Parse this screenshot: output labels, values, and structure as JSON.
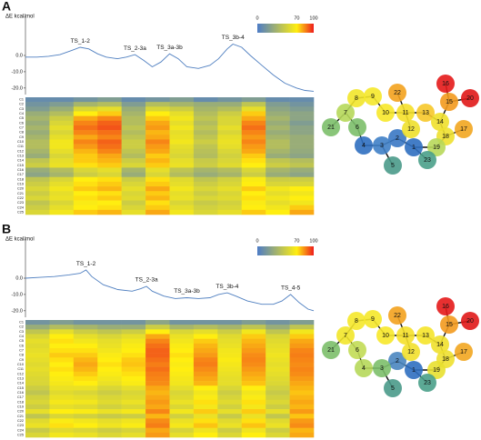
{
  "chart_data": [
    {
      "type": "line",
      "panel": "A",
      "ylabel": "ΔE kcal/mol",
      "color": "#4f7fc0",
      "x": [
        0,
        4,
        8,
        12,
        16,
        19,
        22,
        25,
        28,
        32,
        35,
        38,
        41,
        44,
        47,
        50,
        53,
        56,
        60,
        64,
        67,
        70,
        72,
        75,
        78,
        82,
        86,
        90,
        94,
        97,
        100
      ],
      "values": [
        -1,
        -1,
        -0.5,
        0.5,
        3,
        5,
        4,
        1,
        -1,
        -2,
        -1,
        0.5,
        -3,
        -7,
        -4,
        1,
        -2,
        -7,
        -8,
        -6,
        -2,
        4,
        7,
        5,
        0,
        -6,
        -12,
        -17,
        -20,
        -21.5,
        -22
      ],
      "xlim": [
        0,
        100
      ],
      "ylim": [
        -24,
        24
      ],
      "yticks": [
        {
          "value": 0,
          "label": "0.0"
        },
        {
          "value": -10,
          "label": "-10.0"
        },
        {
          "value": -20,
          "label": "-20.0"
        }
      ],
      "annotations": [
        {
          "text": "TS_1-2",
          "x": 19,
          "y": 5
        },
        {
          "text": "TS_2-3a",
          "x": 38,
          "y": 0.5
        },
        {
          "text": "TS_3a-3b",
          "x": 50,
          "y": 1
        },
        {
          "text": "TS_3b-4",
          "x": 72,
          "y": 7
        }
      ],
      "heatmap": {
        "rows": [
          "C1",
          "C2",
          "C3",
          "C4",
          "C5",
          "C6",
          "C7",
          "C8",
          "C9",
          "C10",
          "C11",
          "C12",
          "C13",
          "C14",
          "C15",
          "C16",
          "C17",
          "C18",
          "C19",
          "C20",
          "C21",
          "C22",
          "C23",
          "C24",
          "C25"
        ],
        "values": [
          [
            10,
            10,
            15,
            20,
            10,
            15,
            20,
            10,
            15,
            20,
            10,
            10
          ],
          [
            15,
            20,
            35,
            40,
            20,
            40,
            35,
            30,
            30,
            45,
            20,
            15
          ],
          [
            20,
            30,
            55,
            60,
            30,
            55,
            50,
            35,
            40,
            60,
            25,
            20
          ],
          [
            30,
            40,
            70,
            75,
            35,
            70,
            60,
            40,
            50,
            75,
            30,
            25
          ],
          [
            35,
            50,
            80,
            85,
            40,
            75,
            65,
            45,
            55,
            80,
            35,
            25
          ],
          [
            30,
            55,
            85,
            90,
            40,
            80,
            60,
            40,
            55,
            85,
            30,
            20
          ],
          [
            35,
            60,
            88,
            92,
            45,
            82,
            65,
            45,
            60,
            88,
            35,
            25
          ],
          [
            30,
            55,
            85,
            88,
            40,
            78,
            60,
            40,
            55,
            85,
            30,
            25
          ],
          [
            35,
            60,
            80,
            85,
            45,
            80,
            62,
            45,
            60,
            82,
            35,
            30
          ],
          [
            40,
            65,
            85,
            90,
            50,
            85,
            65,
            50,
            62,
            85,
            40,
            30
          ],
          [
            40,
            65,
            82,
            88,
            50,
            82,
            60,
            45,
            60,
            82,
            40,
            30
          ],
          [
            35,
            60,
            78,
            85,
            45,
            80,
            58,
            42,
            55,
            80,
            35,
            28
          ],
          [
            30,
            55,
            75,
            80,
            40,
            75,
            55,
            40,
            52,
            75,
            30,
            25
          ],
          [
            45,
            60,
            75,
            78,
            50,
            78,
            60,
            48,
            55,
            72,
            45,
            40
          ],
          [
            50,
            62,
            72,
            75,
            55,
            75,
            62,
            50,
            58,
            70,
            50,
            45
          ],
          [
            30,
            40,
            55,
            60,
            35,
            60,
            45,
            35,
            40,
            55,
            35,
            30
          ],
          [
            25,
            35,
            50,
            55,
            30,
            55,
            40,
            30,
            35,
            50,
            30,
            25
          ],
          [
            45,
            55,
            70,
            72,
            50,
            72,
            58,
            45,
            52,
            68,
            50,
            50
          ],
          [
            50,
            60,
            72,
            75,
            55,
            75,
            60,
            50,
            55,
            70,
            55,
            55
          ],
          [
            55,
            65,
            75,
            78,
            60,
            80,
            65,
            55,
            60,
            75,
            65,
            70
          ],
          [
            50,
            60,
            70,
            72,
            55,
            75,
            60,
            50,
            55,
            70,
            60,
            65
          ],
          [
            55,
            62,
            72,
            75,
            58,
            78,
            62,
            55,
            58,
            72,
            65,
            70
          ],
          [
            45,
            55,
            68,
            70,
            50,
            72,
            55,
            48,
            52,
            68,
            60,
            65
          ],
          [
            50,
            60,
            70,
            72,
            55,
            75,
            60,
            52,
            55,
            70,
            65,
            75
          ],
          [
            55,
            65,
            75,
            78,
            60,
            80,
            65,
            55,
            60,
            75,
            70,
            80
          ]
        ],
        "colorbar": {
          "ticks": [
            0,
            70,
            100
          ],
          "colors": [
            "#4d7cc6",
            "#ffee10",
            "#ee1c1c"
          ]
        }
      },
      "molecule": {
        "nodes": [
          {
            "label": "1",
            "color": "#2f6fc0"
          },
          {
            "label": "2",
            "color": "#3a78c4"
          },
          {
            "label": "3",
            "color": "#3f7fc6"
          },
          {
            "label": "4",
            "color": "#2f6fc0"
          },
          {
            "label": "5",
            "color": "#4a9a8a"
          },
          {
            "label": "6",
            "color": "#7cbf6a"
          },
          {
            "label": "7",
            "color": "#b6d85a"
          },
          {
            "label": "8",
            "color": "#f2e52a"
          },
          {
            "label": "9",
            "color": "#f5e82a"
          },
          {
            "label": "10",
            "color": "#f7e82a"
          },
          {
            "label": "11",
            "color": "#f5e02a"
          },
          {
            "label": "12",
            "color": "#eee02c"
          },
          {
            "label": "13",
            "color": "#f6c82a"
          },
          {
            "label": "14",
            "color": "#f0e02c"
          },
          {
            "label": "15",
            "color": "#f39a1e"
          },
          {
            "label": "16",
            "color": "#e41a1a"
          },
          {
            "label": "17",
            "color": "#f2a620"
          },
          {
            "label": "18",
            "color": "#eee030"
          },
          {
            "label": "19",
            "color": "#b8d85a"
          },
          {
            "label": "20",
            "color": "#e01818"
          },
          {
            "label": "21",
            "color": "#7cbf6a"
          },
          {
            "label": "22",
            "color": "#f3a21e"
          },
          {
            "label": "23",
            "color": "#4aa08a"
          }
        ]
      }
    },
    {
      "type": "line",
      "panel": "B",
      "ylabel": "ΔE kcal/mol",
      "color": "#4f7fc0",
      "x": [
        0,
        5,
        10,
        15,
        19,
        21,
        23,
        27,
        32,
        37,
        40,
        42,
        44,
        48,
        52,
        56,
        60,
        64,
        67,
        70,
        73,
        77,
        82,
        86,
        89,
        92,
        95,
        98,
        100
      ],
      "values": [
        0,
        0.5,
        1,
        2,
        3,
        5,
        1,
        -4,
        -7,
        -8,
        -6.5,
        -5,
        -8,
        -11,
        -12.5,
        -12,
        -12.5,
        -12,
        -10,
        -9,
        -11,
        -14,
        -16,
        -16,
        -14,
        -10,
        -15,
        -19,
        -20
      ],
      "xlim": [
        0,
        100
      ],
      "ylim": [
        -24,
        24
      ],
      "yticks": [
        {
          "value": 0,
          "label": "0.0"
        },
        {
          "value": -10,
          "label": "-10.0"
        },
        {
          "value": -20,
          "label": "-20.0"
        }
      ],
      "annotations": [
        {
          "text": "TS_1-2",
          "x": 21,
          "y": 5
        },
        {
          "text": "TS_2-3a",
          "x": 42,
          "y": -5
        },
        {
          "text": "TS_3a-3b",
          "x": 56,
          "y": -12
        },
        {
          "text": "TS_3b-4",
          "x": 70,
          "y": -9
        },
        {
          "text": "TS_4-5",
          "x": 92,
          "y": -10
        }
      ],
      "heatmap": {
        "rows": [
          "C1",
          "C2",
          "C3",
          "C4",
          "C5",
          "C6",
          "C7",
          "C8",
          "C9",
          "C10",
          "C11",
          "C12",
          "C13",
          "C14",
          "C15",
          "C16",
          "C17",
          "C18",
          "C19",
          "C20",
          "C21",
          "C22",
          "C23",
          "C24",
          "C25"
        ],
        "values": [
          [
            15,
            20,
            15,
            15,
            15,
            25,
            15,
            15,
            15,
            20,
            15,
            20
          ],
          [
            30,
            40,
            35,
            30,
            30,
            50,
            35,
            40,
            35,
            45,
            30,
            45
          ],
          [
            45,
            60,
            50,
            45,
            50,
            70,
            55,
            60,
            50,
            65,
            45,
            65
          ],
          [
            55,
            70,
            60,
            55,
            60,
            80,
            62,
            70,
            58,
            75,
            55,
            75
          ],
          [
            60,
            72,
            65,
            60,
            65,
            85,
            65,
            75,
            60,
            78,
            58,
            80
          ],
          [
            58,
            70,
            70,
            62,
            68,
            88,
            68,
            78,
            62,
            80,
            60,
            82
          ],
          [
            60,
            72,
            72,
            65,
            70,
            90,
            70,
            80,
            65,
            82,
            62,
            85
          ],
          [
            62,
            75,
            75,
            68,
            72,
            90,
            72,
            82,
            66,
            84,
            64,
            86
          ],
          [
            60,
            72,
            78,
            70,
            75,
            88,
            70,
            85,
            68,
            85,
            62,
            85
          ],
          [
            58,
            70,
            80,
            72,
            76,
            86,
            68,
            86,
            66,
            84,
            60,
            84
          ],
          [
            60,
            72,
            78,
            70,
            74,
            88,
            70,
            84,
            64,
            82,
            62,
            85
          ],
          [
            58,
            70,
            75,
            68,
            72,
            86,
            68,
            82,
            62,
            80,
            60,
            84
          ],
          [
            56,
            68,
            72,
            65,
            70,
            85,
            66,
            80,
            60,
            78,
            58,
            82
          ],
          [
            55,
            66,
            70,
            62,
            68,
            84,
            65,
            78,
            60,
            76,
            56,
            80
          ],
          [
            50,
            62,
            62,
            55,
            60,
            80,
            60,
            70,
            55,
            70,
            52,
            78
          ],
          [
            45,
            58,
            55,
            50,
            55,
            78,
            55,
            65,
            50,
            65,
            48,
            76
          ],
          [
            52,
            62,
            60,
            55,
            58,
            80,
            58,
            68,
            54,
            68,
            52,
            78
          ],
          [
            55,
            66,
            65,
            58,
            62,
            82,
            62,
            72,
            58,
            72,
            56,
            80
          ],
          [
            50,
            60,
            58,
            52,
            56,
            80,
            56,
            66,
            52,
            66,
            50,
            78
          ],
          [
            60,
            70,
            68,
            62,
            66,
            85,
            65,
            75,
            60,
            75,
            60,
            82
          ],
          [
            45,
            55,
            52,
            48,
            50,
            78,
            52,
            62,
            48,
            62,
            46,
            76
          ],
          [
            58,
            68,
            65,
            60,
            64,
            84,
            62,
            72,
            58,
            72,
            58,
            82
          ],
          [
            62,
            72,
            70,
            64,
            68,
            86,
            66,
            76,
            62,
            76,
            62,
            84
          ],
          [
            48,
            58,
            55,
            50,
            54,
            80,
            54,
            64,
            50,
            64,
            50,
            78
          ],
          [
            55,
            65,
            62,
            56,
            60,
            82,
            60,
            70,
            56,
            70,
            56,
            80
          ]
        ],
        "colorbar": {
          "ticks": [
            0,
            70,
            100
          ],
          "colors": [
            "#4d7cc6",
            "#ffee10",
            "#ee1c1c"
          ]
        }
      },
      "molecule": {
        "nodes": [
          {
            "label": "1",
            "color": "#2f6fc0"
          },
          {
            "label": "2",
            "color": "#4a86c0"
          },
          {
            "label": "3",
            "color": "#7cbf6a"
          },
          {
            "label": "4",
            "color": "#b6d85a"
          },
          {
            "label": "5",
            "color": "#4a9a8a"
          },
          {
            "label": "6",
            "color": "#c2dc55"
          },
          {
            "label": "7",
            "color": "#f2e52a"
          },
          {
            "label": "8",
            "color": "#f5e82a"
          },
          {
            "label": "9",
            "color": "#f5e82a"
          },
          {
            "label": "10",
            "color": "#f7e82a"
          },
          {
            "label": "11",
            "color": "#f5e02a"
          },
          {
            "label": "12",
            "color": "#f2e02c"
          },
          {
            "label": "13",
            "color": "#f5e42a"
          },
          {
            "label": "14",
            "color": "#f0e02c"
          },
          {
            "label": "15",
            "color": "#f39a1e"
          },
          {
            "label": "16",
            "color": "#e41a1a"
          },
          {
            "label": "17",
            "color": "#f2a620"
          },
          {
            "label": "18",
            "color": "#eee030"
          },
          {
            "label": "19",
            "color": "#e8e030"
          },
          {
            "label": "20",
            "color": "#e01818"
          },
          {
            "label": "21",
            "color": "#7cbf6a"
          },
          {
            "label": "22",
            "color": "#f3a21e"
          },
          {
            "label": "23",
            "color": "#4aa08a"
          }
        ]
      }
    }
  ]
}
